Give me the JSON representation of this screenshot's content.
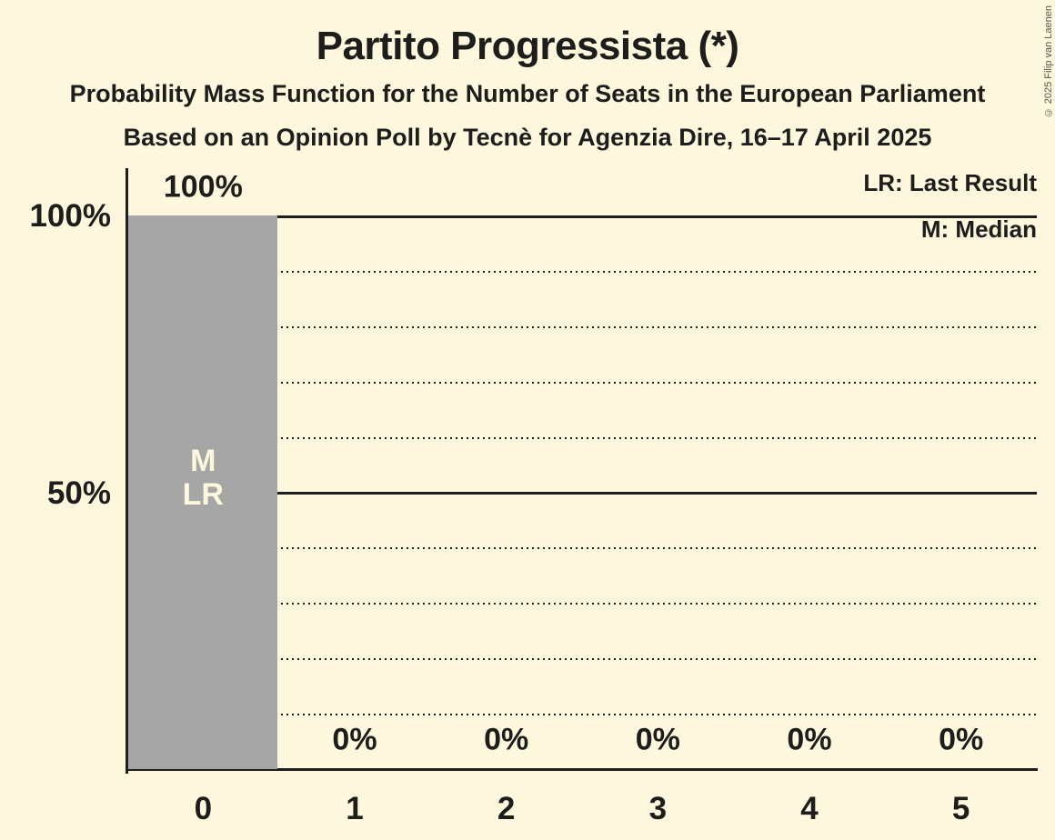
{
  "header": {
    "title": "Partito Progressista (*)",
    "subtitle1": "Probability Mass Function for the Number of Seats in the European Parliament",
    "subtitle2": "Based on an Opinion Poll by Tecnè for Agenzia Dire, 16–17 April 2025"
  },
  "copyright": "© 2025 Filip van Laenen",
  "legend": {
    "last_result": "LR: Last Result",
    "median": "M: Median"
  },
  "colors": {
    "background": "#FCF7DD",
    "bar": "#A6A6A6",
    "ink": "#1D1D1B",
    "bar_annotation_text": "#FCF7DD",
    "copyright_text": "#55554E"
  },
  "chart_data": {
    "type": "bar",
    "title": "Partito Progressista (*)",
    "categories": [
      "0",
      "1",
      "2",
      "3",
      "4",
      "5"
    ],
    "values": [
      100,
      0,
      0,
      0,
      0,
      0
    ],
    "value_labels": [
      "100%",
      "0%",
      "0%",
      "0%",
      "0%",
      "0%"
    ],
    "ylim": [
      0,
      100
    ],
    "y_ticks": [
      {
        "value": 100,
        "label": "100%"
      },
      {
        "value": 50,
        "label": "50%"
      }
    ],
    "solid_gridlines": [
      100,
      50
    ],
    "dotted_gridlines": [
      90,
      80,
      70,
      60,
      40,
      30,
      20,
      10
    ],
    "grid": "horizontal",
    "legend_position": "top-right",
    "median_category": "0",
    "last_result_category": "0",
    "bar_annotations": [
      {
        "category_index": 0,
        "lines": [
          "M",
          "LR"
        ]
      }
    ]
  }
}
